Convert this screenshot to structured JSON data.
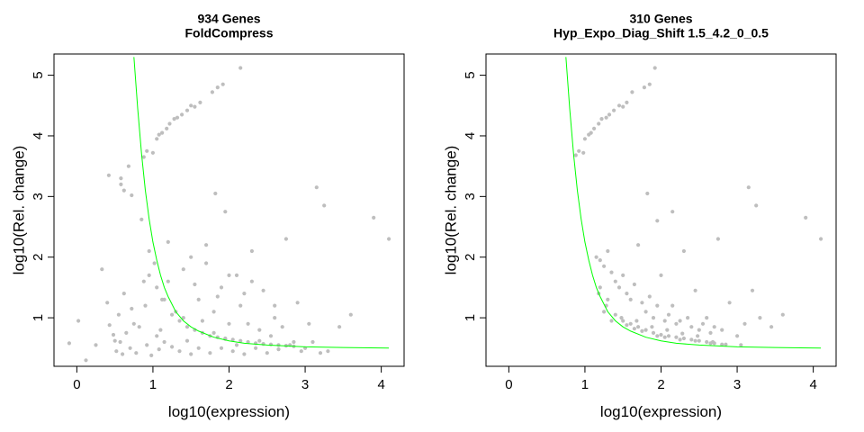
{
  "chart_data": [
    {
      "type": "scatter",
      "title": "934 Genes",
      "subtitle": "FoldCompress",
      "xlabel": "log10(expression)",
      "ylabel": "log10(Rel. change)",
      "xlim": [
        -0.3,
        4.3
      ],
      "ylim": [
        0.2,
        5.35
      ],
      "xticks": [
        "0",
        "1",
        "2",
        "3",
        "4"
      ],
      "yticks": [
        "1",
        "2",
        "3",
        "4",
        "5"
      ],
      "grid": false,
      "point_color": "#bebebe",
      "curve_color": "#00ff00",
      "curve": {
        "x": [
          0.75,
          0.8,
          0.85,
          0.9,
          0.95,
          1.0,
          1.05,
          1.1,
          1.15,
          1.2,
          1.3,
          1.4,
          1.5,
          1.6,
          1.8,
          2.0,
          2.2,
          2.5,
          3.0,
          3.5,
          4.1
        ],
        "y": [
          5.3,
          4.45,
          3.7,
          3.1,
          2.63,
          2.25,
          1.95,
          1.7,
          1.5,
          1.35,
          1.1,
          0.95,
          0.85,
          0.78,
          0.68,
          0.62,
          0.58,
          0.55,
          0.52,
          0.51,
          0.5
        ]
      },
      "points": {
        "x": [
          -0.1,
          0.02,
          0.12,
          0.25,
          0.33,
          0.4,
          0.43,
          0.48,
          0.52,
          0.55,
          0.57,
          0.6,
          0.62,
          0.65,
          0.7,
          0.72,
          0.78,
          0.82,
          0.88,
          0.92,
          0.95,
          0.98,
          1.02,
          1.05,
          1.08,
          1.12,
          1.15,
          1.2,
          1.25,
          1.3,
          1.35,
          1.4,
          1.45,
          1.5,
          1.55,
          1.6,
          1.65,
          1.7,
          1.75,
          1.8,
          1.85,
          1.9,
          1.95,
          2.0,
          2.05,
          2.1,
          2.15,
          2.2,
          2.25,
          2.3,
          2.35,
          2.4,
          2.45,
          2.5,
          2.55,
          2.6,
          2.65,
          2.7,
          2.75,
          2.8,
          2.85,
          2.9,
          2.95,
          3.0,
          3.05,
          3.1,
          3.2,
          3.3,
          3.45,
          3.6,
          3.9,
          4.1,
          0.42,
          0.58,
          0.68,
          0.88,
          0.92,
          1.0,
          1.05,
          1.08,
          1.12,
          1.18,
          1.22,
          1.28,
          1.32,
          1.38,
          1.45,
          1.5,
          1.55,
          1.62,
          1.78,
          1.85,
          1.92,
          2.15,
          1.82,
          1.95,
          3.15,
          3.25,
          0.58,
          0.62,
          0.72,
          0.85,
          0.95,
          1.05,
          1.15,
          1.25,
          1.35,
          1.45,
          1.55,
          1.65,
          1.75,
          1.85,
          1.95,
          2.05,
          2.15,
          2.25,
          2.35,
          2.45,
          2.55,
          2.65,
          2.75,
          2.85,
          0.5,
          0.75,
          0.9,
          1.1,
          1.2,
          1.4,
          1.6,
          1.8,
          2.0,
          2.2,
          2.4,
          2.6,
          1.5,
          1.7,
          1.9,
          2.1,
          2.3
        ],
        "y": [
          0.58,
          0.95,
          0.3,
          0.55,
          1.8,
          1.25,
          0.88,
          0.72,
          0.45,
          1.05,
          0.6,
          0.4,
          1.4,
          0.75,
          0.5,
          1.15,
          0.42,
          0.85,
          1.6,
          0.55,
          2.1,
          0.38,
          1.9,
          0.7,
          0.48,
          1.3,
          0.6,
          2.25,
          0.52,
          1.1,
          0.45,
          1.8,
          0.62,
          0.4,
          1.55,
          0.5,
          0.95,
          2.2,
          0.42,
          0.75,
          1.35,
          0.5,
          0.65,
          1.7,
          0.45,
          0.55,
          1.2,
          0.4,
          0.9,
          2.1,
          0.5,
          0.62,
          1.45,
          0.42,
          0.7,
          1.0,
          0.48,
          0.85,
          2.3,
          0.55,
          0.6,
          1.25,
          0.45,
          0.5,
          0.9,
          0.6,
          0.42,
          0.45,
          0.85,
          1.05,
          2.65,
          2.3,
          3.35,
          3.3,
          3.5,
          3.65,
          3.75,
          3.72,
          3.95,
          4.02,
          4.05,
          4.12,
          4.2,
          4.28,
          4.3,
          4.35,
          4.42,
          4.5,
          4.48,
          4.55,
          4.72,
          4.8,
          4.85,
          5.12,
          3.05,
          2.75,
          3.15,
          2.85,
          3.2,
          3.1,
          3.02,
          2.62,
          1.7,
          1.5,
          1.3,
          1.05,
          0.95,
          0.85,
          0.8,
          0.75,
          0.7,
          0.68,
          0.66,
          0.64,
          0.62,
          0.6,
          0.58,
          0.57,
          0.56,
          0.55,
          0.54,
          0.53,
          0.62,
          0.9,
          1.2,
          0.8,
          1.6,
          1.0,
          1.3,
          1.1,
          0.9,
          1.4,
          0.8,
          1.2,
          2.0,
          1.9,
          1.5,
          1.7,
          1.6
        ]
      }
    },
    {
      "type": "scatter",
      "title": "310 Genes",
      "subtitle": "Hyp_Expo_Diag_Shift 1.5_4.2_0_0.5",
      "xlabel": "log10(expression)",
      "ylabel": "log10(Rel. change)",
      "xlim": [
        -0.3,
        4.3
      ],
      "ylim": [
        0.2,
        5.35
      ],
      "xticks": [
        "0",
        "1",
        "2",
        "3",
        "4"
      ],
      "yticks": [
        "1",
        "2",
        "3",
        "4",
        "5"
      ],
      "grid": false,
      "point_color": "#bebebe",
      "curve_color": "#00ff00",
      "curve": {
        "x": [
          0.75,
          0.8,
          0.85,
          0.9,
          0.95,
          1.0,
          1.05,
          1.1,
          1.15,
          1.2,
          1.3,
          1.4,
          1.5,
          1.6,
          1.8,
          2.0,
          2.2,
          2.5,
          3.0,
          3.5,
          4.1
        ],
        "y": [
          5.3,
          4.45,
          3.7,
          3.1,
          2.63,
          2.25,
          1.95,
          1.7,
          1.5,
          1.35,
          1.1,
          0.95,
          0.85,
          0.78,
          0.68,
          0.62,
          0.58,
          0.55,
          0.52,
          0.51,
          0.5
        ]
      },
      "points": {
        "x": [
          0.88,
          0.92,
          0.98,
          1.0,
          1.05,
          1.08,
          1.12,
          1.18,
          1.22,
          1.28,
          1.32,
          1.38,
          1.45,
          1.5,
          1.55,
          1.62,
          1.78,
          1.85,
          1.92,
          2.15,
          1.82,
          1.95,
          3.15,
          3.25,
          3.9,
          4.1,
          1.15,
          1.2,
          1.25,
          1.3,
          1.35,
          1.4,
          1.45,
          1.5,
          1.55,
          1.6,
          1.65,
          1.7,
          1.75,
          1.8,
          1.85,
          1.9,
          1.95,
          2.0,
          2.05,
          2.1,
          2.15,
          2.2,
          2.25,
          2.3,
          2.35,
          2.4,
          2.45,
          2.5,
          2.55,
          2.6,
          2.65,
          2.7,
          2.75,
          2.8,
          2.9,
          3.0,
          3.1,
          3.2,
          3.3,
          3.45,
          3.6,
          1.2,
          1.3,
          1.4,
          1.5,
          1.6,
          1.7,
          1.8,
          1.9,
          2.0,
          2.1,
          2.2,
          2.3,
          2.4,
          2.5,
          2.6,
          2.7,
          2.8,
          1.25,
          1.35,
          1.55,
          1.65,
          1.75,
          1.95,
          2.05,
          2.25,
          2.45,
          2.65,
          2.85,
          3.05,
          1.18,
          1.28,
          1.48,
          1.68,
          1.88,
          2.08,
          2.28,
          2.48,
          2.68
        ],
        "y": [
          3.68,
          3.75,
          3.72,
          3.95,
          4.02,
          4.05,
          4.12,
          4.2,
          4.28,
          4.3,
          4.35,
          4.42,
          4.5,
          4.48,
          4.55,
          4.72,
          4.8,
          4.85,
          5.12,
          2.75,
          3.05,
          2.6,
          3.15,
          2.85,
          2.65,
          2.3,
          2.0,
          1.95,
          1.85,
          2.1,
          1.75,
          1.6,
          1.5,
          1.7,
          1.4,
          1.3,
          1.55,
          2.2,
          1.25,
          1.1,
          1.35,
          1.0,
          1.2,
          1.7,
          0.95,
          1.05,
          1.2,
          0.9,
          0.95,
          2.1,
          1.0,
          0.85,
          1.45,
          0.8,
          0.9,
          1.0,
          0.75,
          0.85,
          2.3,
          0.8,
          1.25,
          0.7,
          0.9,
          1.45,
          1.0,
          0.85,
          1.05,
          1.5,
          1.3,
          1.05,
          0.95,
          0.9,
          0.85,
          0.8,
          0.75,
          0.72,
          0.7,
          0.68,
          0.66,
          0.64,
          0.62,
          0.6,
          0.58,
          0.56,
          1.1,
          0.95,
          0.88,
          0.82,
          0.78,
          0.7,
          0.68,
          0.64,
          0.62,
          0.58,
          0.56,
          0.55,
          1.4,
          1.2,
          1.0,
          0.95,
          0.85,
          0.8,
          0.74,
          0.7,
          0.6
        ]
      }
    }
  ]
}
